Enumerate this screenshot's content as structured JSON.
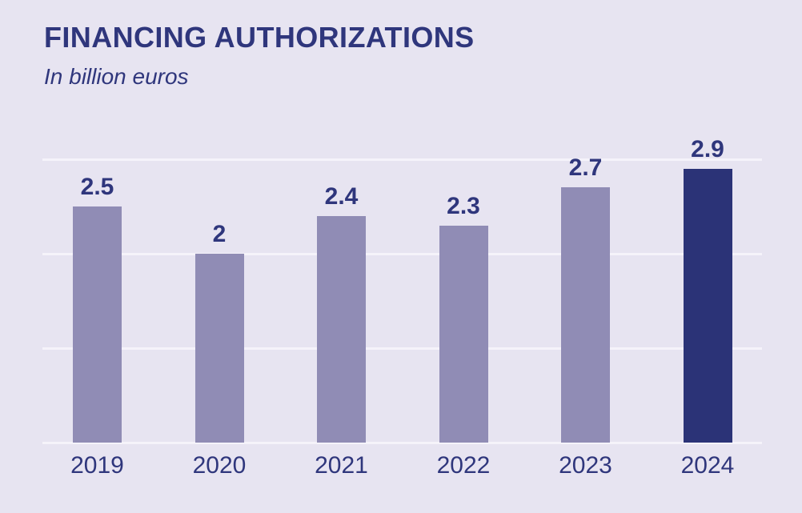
{
  "header": {
    "title": "FINANCING AUTHORIZATIONS",
    "subtitle": "In billion euros"
  },
  "chart_data": {
    "type": "bar",
    "title": "FINANCING AUTHORIZATIONS",
    "subtitle": "In billion euros",
    "categories": [
      "2019",
      "2020",
      "2021",
      "2022",
      "2023",
      "2024"
    ],
    "values": [
      2.5,
      2,
      2.4,
      2.3,
      2.7,
      2.9
    ],
    "value_labels": [
      "2.5",
      "2",
      "2.4",
      "2.3",
      "2.7",
      "2.9"
    ],
    "series_name": "Financing authorizations (billion euros)",
    "xlabel": "",
    "ylabel": "In billion euros",
    "ylim": [
      0,
      3
    ],
    "gridline_values": [
      0,
      1,
      2,
      3
    ],
    "grid": true,
    "legend": false,
    "highlight_index": 5,
    "colors": {
      "background": "#e7e4f1",
      "bar": "#908cb5",
      "bar_highlight": "#2b3377",
      "gridline": "#f5f3fa",
      "text": "#2f367c"
    }
  }
}
